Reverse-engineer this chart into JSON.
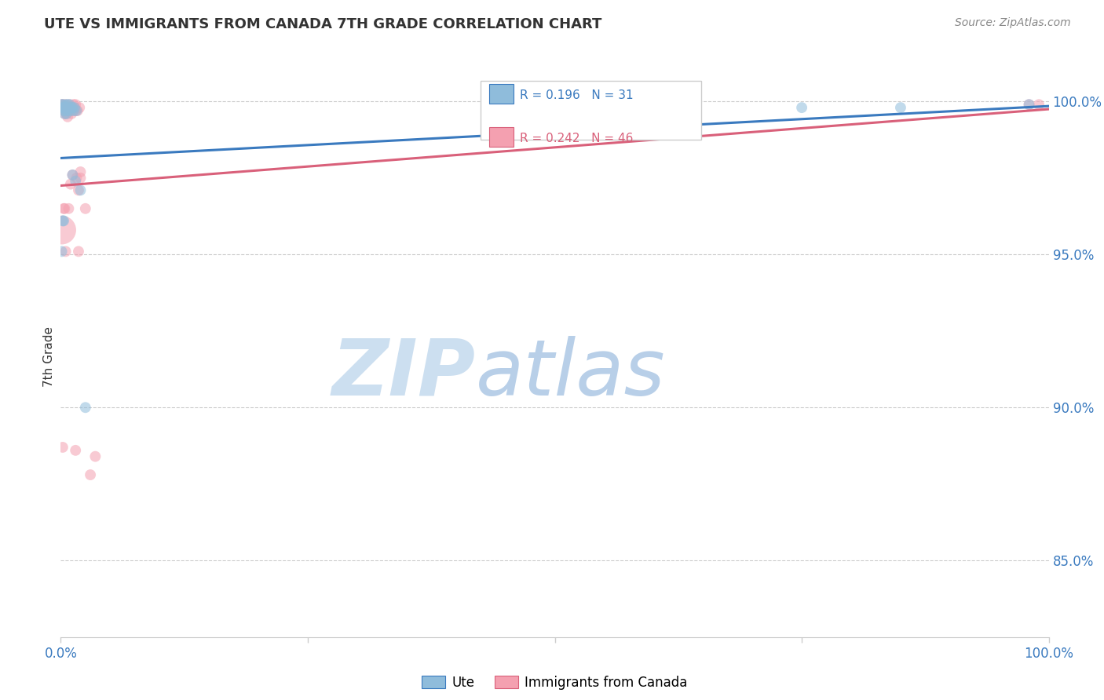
{
  "title": "UTE VS IMMIGRANTS FROM CANADA 7TH GRADE CORRELATION CHART",
  "source": "Source: ZipAtlas.com",
  "ylabel": "7th Grade",
  "right_ytick_labels": [
    "100.0%",
    "95.0%",
    "90.0%",
    "85.0%"
  ],
  "right_ytick_values": [
    1.0,
    0.95,
    0.9,
    0.85
  ],
  "legend_blue_r": "R = 0.196",
  "legend_blue_n": "N = 31",
  "legend_pink_r": "R = 0.242",
  "legend_pink_n": "N = 46",
  "blue_color": "#8fbcdb",
  "pink_color": "#f4a0b0",
  "blue_line_color": "#3a7abf",
  "pink_line_color": "#d9607a",
  "watermark_zip_color": "#ccdff0",
  "watermark_atlas_color": "#b8cfe8",
  "blue_points_x": [
    0.001,
    0.002,
    0.002,
    0.003,
    0.003,
    0.004,
    0.004,
    0.005,
    0.005,
    0.006,
    0.006,
    0.007,
    0.007,
    0.008,
    0.009,
    0.01,
    0.011,
    0.012,
    0.012,
    0.013,
    0.014,
    0.015,
    0.016,
    0.002,
    0.003,
    0.001,
    0.02,
    0.025,
    0.75,
    0.85,
    0.98
  ],
  "blue_points_y": [
    0.999,
    0.998,
    0.999,
    0.997,
    0.998,
    0.998,
    0.996,
    0.999,
    0.997,
    0.998,
    0.996,
    0.997,
    0.999,
    0.998,
    0.999,
    0.997,
    0.998,
    0.976,
    0.998,
    0.997,
    0.998,
    0.974,
    0.997,
    0.961,
    0.961,
    0.951,
    0.971,
    0.9,
    0.998,
    0.998,
    0.999
  ],
  "blue_sizes": [
    100,
    100,
    100,
    100,
    100,
    100,
    100,
    100,
    100,
    100,
    100,
    100,
    100,
    100,
    100,
    100,
    100,
    100,
    100,
    100,
    100,
    100,
    100,
    100,
    100,
    100,
    100,
    100,
    100,
    100,
    100
  ],
  "pink_points_x": [
    0.001,
    0.002,
    0.002,
    0.003,
    0.003,
    0.004,
    0.004,
    0.005,
    0.005,
    0.006,
    0.006,
    0.007,
    0.007,
    0.008,
    0.008,
    0.009,
    0.01,
    0.01,
    0.011,
    0.012,
    0.013,
    0.013,
    0.014,
    0.015,
    0.015,
    0.016,
    0.017,
    0.018,
    0.019,
    0.001,
    0.003,
    0.005,
    0.008,
    0.012,
    0.018,
    0.02,
    0.025,
    0.03,
    0.035,
    0.02,
    0.01,
    0.015,
    0.002,
    0.004,
    0.98,
    0.99
  ],
  "pink_points_y": [
    0.999,
    0.998,
    0.999,
    0.997,
    0.998,
    0.998,
    0.996,
    0.999,
    0.997,
    0.998,
    0.996,
    0.997,
    0.995,
    0.998,
    0.997,
    0.999,
    0.997,
    0.998,
    0.996,
    0.998,
    0.997,
    0.999,
    0.998,
    0.997,
    0.999,
    0.975,
    0.997,
    0.971,
    0.998,
    0.958,
    0.965,
    0.951,
    0.965,
    0.976,
    0.951,
    0.975,
    0.965,
    0.878,
    0.884,
    0.977,
    0.973,
    0.886,
    0.887,
    0.965,
    0.999,
    0.999
  ],
  "pink_sizes": [
    100,
    100,
    100,
    100,
    100,
    100,
    100,
    100,
    100,
    100,
    100,
    100,
    100,
    100,
    100,
    100,
    100,
    100,
    100,
    100,
    100,
    100,
    100,
    100,
    100,
    100,
    100,
    100,
    100,
    700,
    100,
    100,
    100,
    100,
    100,
    100,
    100,
    100,
    100,
    100,
    100,
    100,
    100,
    100,
    100,
    100
  ],
  "blue_line_x": [
    0.0,
    1.0
  ],
  "blue_line_y": [
    0.9815,
    0.9985
  ],
  "pink_line_x": [
    0.0,
    1.0
  ],
  "pink_line_y": [
    0.9725,
    0.9975
  ],
  "ylim_min": 0.825,
  "ylim_max": 1.008,
  "xlim_min": 0.0,
  "xlim_max": 1.0
}
